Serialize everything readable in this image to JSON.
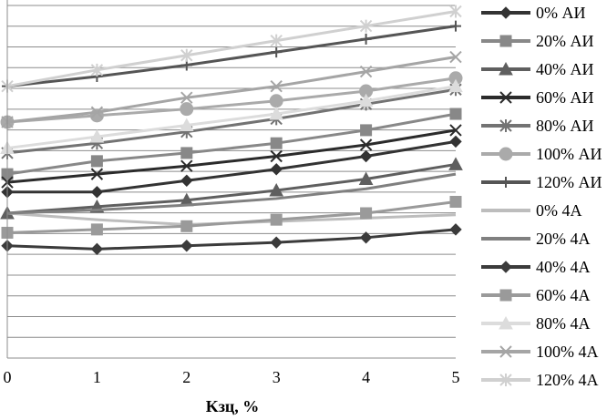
{
  "chart_data": {
    "type": "line",
    "title": "",
    "xlabel": "Kзц, %",
    "ylabel": "",
    "x": [
      0,
      1,
      2,
      3,
      4,
      5
    ],
    "xlim": [
      0,
      5
    ],
    "ylim": [
      0,
      22
    ],
    "grid": true,
    "legend_position": "right",
    "series": [
      {
        "name": "0% АИ",
        "values": [
          10.2,
          10.2,
          10.9,
          11.6,
          12.4,
          13.3
        ],
        "color": "#333333",
        "marker": "diamond",
        "line_width": 3
      },
      {
        "name": "20% АИ",
        "values": [
          11.3,
          12.1,
          12.6,
          13.2,
          14.0,
          15.0
        ],
        "color": "#888888",
        "marker": "square",
        "line_width": 3
      },
      {
        "name": "40% АИ",
        "values": [
          8.9,
          9.3,
          9.7,
          10.3,
          11.0,
          11.9
        ],
        "color": "#5f5f5f",
        "marker": "triangle",
        "line_width": 3
      },
      {
        "name": "60% АИ",
        "values": [
          10.8,
          11.3,
          11.8,
          12.4,
          13.1,
          14.0
        ],
        "color": "#2b2b2b",
        "marker": "x",
        "line_width": 3
      },
      {
        "name": "80% АИ",
        "values": [
          12.6,
          13.2,
          13.9,
          14.7,
          15.6,
          16.5
        ],
        "color": "#737373",
        "marker": "asterisk",
        "line_width": 3
      },
      {
        "name": "100% АИ",
        "values": [
          14.5,
          14.9,
          15.3,
          15.8,
          16.4,
          17.2
        ],
        "color": "#aaaaaa",
        "marker": "circle",
        "line_width": 3
      },
      {
        "name": "120% АИ",
        "values": [
          16.7,
          17.3,
          18.0,
          18.8,
          19.6,
          20.4
        ],
        "color": "#555555",
        "marker": "plus",
        "line_width": 3
      },
      {
        "name": "0% 4А",
        "values": [
          8.9,
          8.5,
          8.2,
          8.4,
          8.6,
          8.8
        ],
        "color": "#bdbdbd",
        "marker": "none",
        "line_width": 3
      },
      {
        "name": "20% 4А",
        "values": [
          8.9,
          9.1,
          9.4,
          9.8,
          10.4,
          11.3
        ],
        "color": "#808080",
        "marker": "none",
        "line_width": 3
      },
      {
        "name": "40% 4А",
        "values": [
          6.9,
          6.7,
          6.9,
          7.1,
          7.4,
          7.9
        ],
        "color": "#3b3b3b",
        "marker": "diamond",
        "line_width": 3
      },
      {
        "name": "60% 4А",
        "values": [
          7.7,
          7.9,
          8.1,
          8.5,
          8.9,
          9.6
        ],
        "color": "#9a9a9a",
        "marker": "square",
        "line_width": 3
      },
      {
        "name": "80% 4А",
        "values": [
          12.9,
          13.6,
          14.3,
          15.0,
          15.8,
          16.7
        ],
        "color": "#dcdcdc",
        "marker": "triangle",
        "line_width": 3
      },
      {
        "name": "100% 4А",
        "values": [
          14.5,
          15.1,
          16.0,
          16.7,
          17.6,
          18.5
        ],
        "color": "#a5a5a5",
        "marker": "x",
        "line_width": 3
      },
      {
        "name": "120% 4А",
        "values": [
          16.7,
          17.7,
          18.6,
          19.5,
          20.4,
          21.3
        ],
        "color": "#d0d0d0",
        "marker": "asterisk",
        "line_width": 3
      }
    ]
  }
}
